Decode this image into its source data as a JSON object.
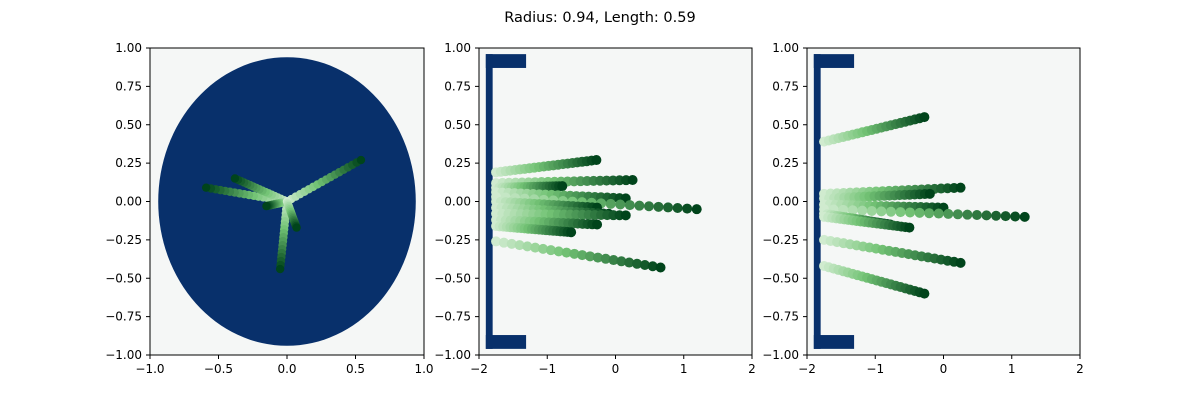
{
  "figure_title": "Radius: 0.94, Length: 0.59",
  "colors": {
    "background": "#f5f7f6",
    "obstacle": "#08306b",
    "trail_light": "#f7fcf5",
    "trail_mid": "#74c476",
    "trail_dark": "#00441b",
    "axes": "#000000"
  },
  "chart_data": [
    {
      "type": "scatter",
      "panel": "left",
      "title": "",
      "xlabel": "",
      "ylabel": "",
      "xlim": [
        -1,
        1
      ],
      "ylim": [
        -1,
        1
      ],
      "xticks": [
        "−1.0",
        "−0.5",
        "0.0",
        "0.5",
        "1.0"
      ],
      "yticks": [
        "−1.00",
        "−0.75",
        "−0.50",
        "−0.25",
        "0.00",
        "0.25",
        "0.50",
        "0.75",
        "1.00"
      ],
      "grid": false,
      "legend": "none",
      "obstacle": {
        "shape": "disk",
        "radius": 0.94
      },
      "series": [
        {
          "start": [
            0.0,
            0.0
          ],
          "end": [
            0.54,
            0.27
          ]
        },
        {
          "start": [
            0.0,
            0.0
          ],
          "end": [
            -0.59,
            0.09
          ]
        },
        {
          "start": [
            0.0,
            0.0
          ],
          "end": [
            -0.05,
            -0.44
          ]
        },
        {
          "start": [
            0.0,
            0.0
          ],
          "end": [
            -0.38,
            0.15
          ]
        },
        {
          "start": [
            0.0,
            0.0
          ],
          "end": [
            -0.15,
            -0.03
          ]
        },
        {
          "start": [
            0.0,
            0.0
          ],
          "end": [
            0.07,
            -0.17
          ]
        }
      ]
    },
    {
      "type": "scatter",
      "panel": "middle",
      "title": "",
      "xlabel": "",
      "ylabel": "",
      "xlim": [
        -2,
        2
      ],
      "ylim": [
        -1,
        1
      ],
      "xticks": [
        "−2",
        "−1",
        "0",
        "1",
        "2"
      ],
      "yticks": [
        "−1.00",
        "−0.75",
        "−0.50",
        "−0.25",
        "0.00",
        "0.25",
        "0.50",
        "0.75",
        "1.00"
      ],
      "grid": false,
      "legend": "none",
      "obstacle": {
        "shape": "bracket",
        "length": 0.59
      },
      "series": [
        {
          "start": [
            -1.75,
            0.19
          ],
          "end": [
            -0.28,
            0.27
          ]
        },
        {
          "start": [
            -1.75,
            0.12
          ],
          "end": [
            0.25,
            0.14
          ]
        },
        {
          "start": [
            -1.75,
            0.09
          ],
          "end": [
            -0.78,
            0.1
          ]
        },
        {
          "start": [
            -1.75,
            0.06
          ],
          "end": [
            0.15,
            0.02
          ]
        },
        {
          "start": [
            -1.75,
            0.03
          ],
          "end": [
            1.19,
            -0.05
          ]
        },
        {
          "start": [
            -1.75,
            0.0
          ],
          "end": [
            -0.27,
            -0.04
          ]
        },
        {
          "start": [
            -1.75,
            -0.04
          ],
          "end": [
            -0.1,
            -0.08
          ]
        },
        {
          "start": [
            -1.75,
            -0.08
          ],
          "end": [
            0.15,
            -0.09
          ]
        },
        {
          "start": [
            -1.75,
            -0.12
          ],
          "end": [
            -0.27,
            -0.15
          ]
        },
        {
          "start": [
            -1.75,
            -0.16
          ],
          "end": [
            -0.65,
            -0.2
          ]
        },
        {
          "start": [
            -1.75,
            -0.26
          ],
          "end": [
            0.66,
            -0.43
          ]
        }
      ]
    },
    {
      "type": "scatter",
      "panel": "right",
      "title": "",
      "xlabel": "",
      "ylabel": "",
      "xlim": [
        -2,
        2
      ],
      "ylim": [
        -1,
        1
      ],
      "xticks": [
        "−2",
        "−1",
        "0",
        "1",
        "2"
      ],
      "yticks": [
        "−1.00",
        "−0.75",
        "−0.50",
        "−0.25",
        "0.00",
        "0.25",
        "0.50",
        "0.75",
        "1.00"
      ],
      "grid": false,
      "legend": "none",
      "obstacle": {
        "shape": "bracket",
        "length": 0.59
      },
      "series": [
        {
          "start": [
            -1.75,
            0.39
          ],
          "end": [
            -0.28,
            0.55
          ]
        },
        {
          "start": [
            -1.75,
            0.05
          ],
          "end": [
            0.25,
            0.09
          ]
        },
        {
          "start": [
            -1.75,
            0.02
          ],
          "end": [
            -0.2,
            0.05
          ]
        },
        {
          "start": [
            -1.75,
            -0.02
          ],
          "end": [
            0.0,
            -0.04
          ]
        },
        {
          "start": [
            -1.75,
            -0.05
          ],
          "end": [
            1.19,
            -0.1
          ]
        },
        {
          "start": [
            -1.75,
            -0.08
          ],
          "end": [
            -0.78,
            -0.15
          ]
        },
        {
          "start": [
            -1.75,
            -0.1
          ],
          "end": [
            -0.5,
            -0.17
          ]
        },
        {
          "start": [
            -1.75,
            -0.25
          ],
          "end": [
            0.25,
            -0.4
          ]
        },
        {
          "start": [
            -1.75,
            -0.42
          ],
          "end": [
            -0.28,
            -0.6
          ]
        }
      ]
    }
  ]
}
